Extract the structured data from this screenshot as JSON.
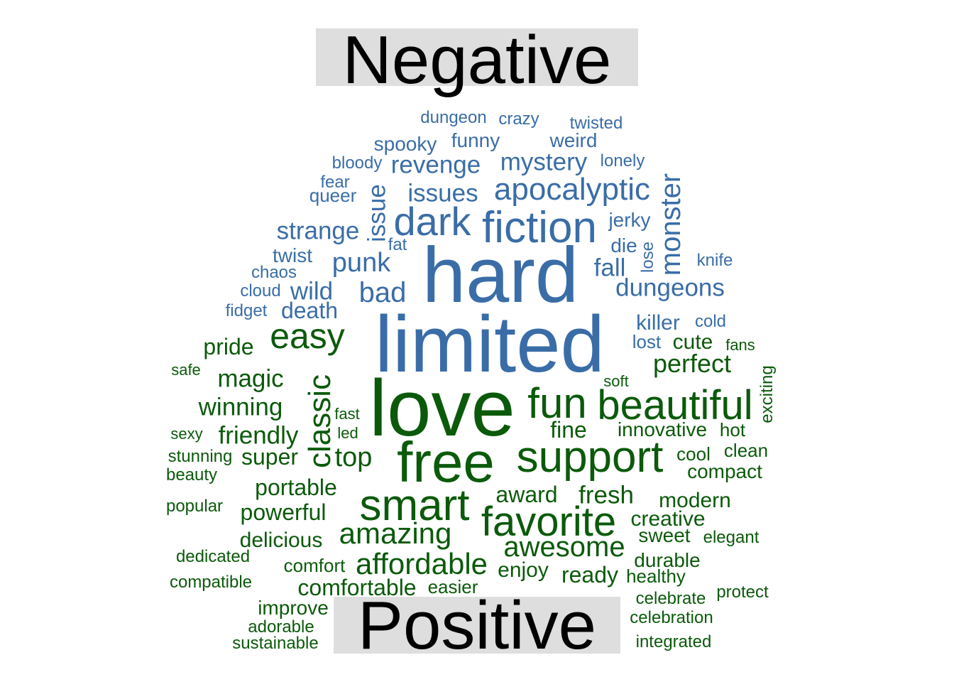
{
  "colors": {
    "negative": "#3a6da7",
    "positive": "#0b5a0b",
    "banner_bg": "#dedede"
  },
  "titles": {
    "negative": "Negative",
    "positive": "Positive"
  },
  "negative_words": [
    "dungeon",
    "crazy",
    "twisted",
    "funny",
    "weird",
    "spooky",
    "mystery",
    "lonely",
    "bloody",
    "revenge",
    "fear",
    "queer",
    "issues",
    "apocalyptic",
    "issue",
    "dark",
    "fiction",
    "monster",
    "strange",
    "jerky",
    "fat",
    "die",
    "lose",
    "twist",
    "punk",
    "fall",
    "knife",
    "chaos",
    "hard",
    "cloud",
    "wild",
    "bad",
    "dungeons",
    "fidget",
    "death",
    "limited",
    "killer",
    "cold",
    "lost"
  ],
  "positive_words": [
    "easy",
    "cute",
    "fans",
    "pride",
    "perfect",
    "safe",
    "magic",
    "classic",
    "soft",
    "exciting",
    "winning",
    "fun",
    "beautiful",
    "love",
    "fast",
    "sexy",
    "friendly",
    "led",
    "fine",
    "innovative",
    "hot",
    "stunning",
    "super",
    "top",
    "free",
    "support",
    "cool",
    "clean",
    "beauty",
    "compact",
    "portable",
    "award",
    "fresh",
    "popular",
    "smart",
    "modern",
    "powerful",
    "favorite",
    "creative",
    "delicious",
    "amazing",
    "sweet",
    "elegant",
    "dedicated",
    "awesome",
    "durable",
    "comfort",
    "affordable",
    "enjoy",
    "ready",
    "healthy",
    "compatible",
    "comfortable",
    "easier",
    "protect",
    "celebrate",
    "improve",
    "celebration",
    "adorable",
    "sustainable",
    "integrated"
  ]
}
